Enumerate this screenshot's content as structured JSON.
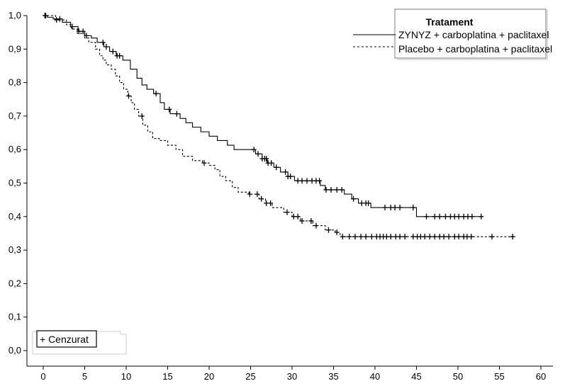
{
  "chart_data": {
    "type": "line",
    "xlabel": "",
    "ylabel": "",
    "xlim": [
      0,
      60
    ],
    "ylim": [
      0,
      1
    ],
    "x_ticks": [
      "0",
      "5",
      "10",
      "15",
      "20",
      "25",
      "30",
      "35",
      "40",
      "45",
      "50",
      "55",
      "60"
    ],
    "y_ticks": [
      "0,0",
      "0,1",
      "0,2",
      "0,3",
      "0,4",
      "0,5",
      "0,6",
      "0,7",
      "0,8",
      "0,9",
      "1,0"
    ],
    "grid": false,
    "legend": {
      "title": "Tratament",
      "placement": "top-right",
      "censor_label": "+ Cenzurat"
    },
    "series": [
      {
        "name": "ZYNYZ + carboplatina + paclitaxel",
        "style": "solid",
        "color": "#000000",
        "x": [
          0,
          0.5,
          1.2,
          2.3,
          3.3,
          4.2,
          5.0,
          5.8,
          6.5,
          7.3,
          8.0,
          8.8,
          9.6,
          10.5,
          11.3,
          11.9,
          12.5,
          13.3,
          14.1,
          14.6,
          15.3,
          16.5,
          17.2,
          18.0,
          19.0,
          20.0,
          21.0,
          22.2,
          23.0,
          24.0,
          25.6,
          26.4,
          27.0,
          27.8,
          28.6,
          29.5,
          30.3,
          32.0,
          33.4,
          34.0,
          35.0,
          36.3,
          37.2,
          38.0,
          39.5,
          40.3,
          44.2,
          45.0,
          53.0
        ],
        "y": [
          1.0,
          0.995,
          0.99,
          0.98,
          0.967,
          0.953,
          0.94,
          0.933,
          0.92,
          0.907,
          0.893,
          0.88,
          0.867,
          0.84,
          0.813,
          0.793,
          0.78,
          0.767,
          0.74,
          0.72,
          0.707,
          0.693,
          0.68,
          0.667,
          0.653,
          0.64,
          0.627,
          0.613,
          0.6,
          0.6,
          0.587,
          0.573,
          0.56,
          0.547,
          0.533,
          0.52,
          0.507,
          0.507,
          0.493,
          0.48,
          0.48,
          0.467,
          0.453,
          0.44,
          0.427,
          0.427,
          0.427,
          0.4,
          0.4
        ],
        "censored_x": [
          0.3,
          2.0,
          3.5,
          4.3,
          4.8,
          5.2,
          7.2,
          7.6,
          8.4,
          8.9,
          9.2,
          13.6,
          15.2,
          16.1,
          25.4,
          25.9,
          26.4,
          26.7,
          26.9,
          27.1,
          27.5,
          28.1,
          29.2,
          29.5,
          29.8,
          30.7,
          31.2,
          31.8,
          32.4,
          32.9,
          33.3,
          34.1,
          34.7,
          35.4,
          36.0,
          37.4,
          38.4,
          38.9,
          39.2,
          41.2,
          41.9,
          42.4,
          43.0,
          44.6,
          46.2,
          47.2,
          47.8,
          48.5,
          49.1,
          49.6,
          50.1,
          50.7,
          51.2,
          51.7,
          52.8
        ]
      },
      {
        "name": "Placebo + carboplatina + paclitaxel",
        "style": "dashed",
        "color": "#000000",
        "x": [
          0,
          1.5,
          2.8,
          3.4,
          4.1,
          5.0,
          5.5,
          6.3,
          6.8,
          7.2,
          7.6,
          8.2,
          8.7,
          9.2,
          9.7,
          10.2,
          10.6,
          11.0,
          11.5,
          12.0,
          12.6,
          13.2,
          14.0,
          15.0,
          16.0,
          16.8,
          18.0,
          19.2,
          20.0,
          20.7,
          21.3,
          22.0,
          22.8,
          23.5,
          24.8,
          26.0,
          26.8,
          27.6,
          29.0,
          30.0,
          31.0,
          32.5,
          34.0,
          35.2,
          35.8,
          56.6
        ],
        "y": [
          1.0,
          0.987,
          0.973,
          0.96,
          0.947,
          0.933,
          0.92,
          0.9,
          0.88,
          0.867,
          0.853,
          0.84,
          0.82,
          0.8,
          0.78,
          0.76,
          0.74,
          0.72,
          0.7,
          0.673,
          0.653,
          0.633,
          0.627,
          0.613,
          0.6,
          0.58,
          0.567,
          0.56,
          0.553,
          0.54,
          0.52,
          0.507,
          0.487,
          0.473,
          0.467,
          0.453,
          0.44,
          0.427,
          0.413,
          0.4,
          0.387,
          0.373,
          0.36,
          0.353,
          0.34,
          0.34
        ],
        "censored_x": [
          0.2,
          1.6,
          10.3,
          11.9,
          19.4,
          24.9,
          25.8,
          26.3,
          26.9,
          27.4,
          29.4,
          30.2,
          30.7,
          31.2,
          32.3,
          32.9,
          34.4,
          35.4,
          36.1,
          36.9,
          37.6,
          38.3,
          38.9,
          39.6,
          40.2,
          40.6,
          41.0,
          41.4,
          41.9,
          42.5,
          43.0,
          43.6,
          44.6,
          45.1,
          45.5,
          46.0,
          46.6,
          47.2,
          47.8,
          48.3,
          48.9,
          49.6,
          50.1,
          50.7,
          51.1,
          51.6,
          54.1,
          56.6
        ]
      }
    ]
  }
}
